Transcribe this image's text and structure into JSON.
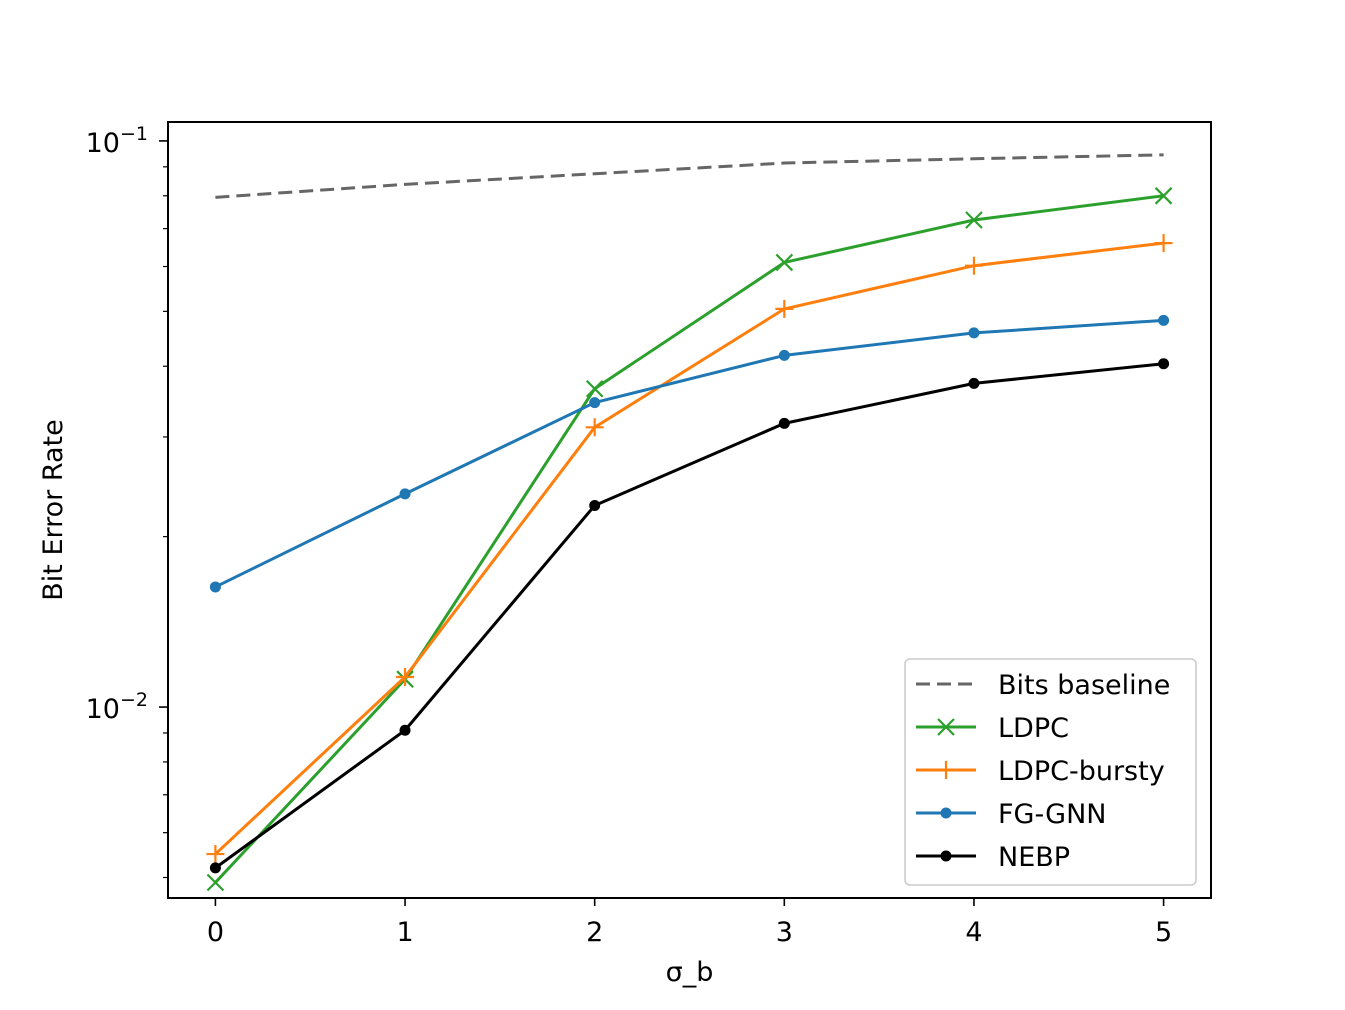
{
  "chart_data": {
    "type": "line",
    "title": "",
    "xlabel": "σ_b",
    "ylabel": "Bit Error Rate",
    "yscale": "log",
    "x": [
      0,
      1,
      2,
      3,
      4,
      5
    ],
    "xlim": [
      -0.25,
      5.25
    ],
    "ylim": [
      0.0046,
      0.108
    ],
    "xticks": [
      {
        "value": 0,
        "label": "0"
      },
      {
        "value": 1,
        "label": "1"
      },
      {
        "value": 2,
        "label": "2"
      },
      {
        "value": 3,
        "label": "3"
      },
      {
        "value": 4,
        "label": "4"
      },
      {
        "value": 5,
        "label": "5"
      }
    ],
    "yticks": [
      {
        "value": 0.1,
        "base": "10",
        "exp": "−1"
      },
      {
        "value": 0.01,
        "base": "10",
        "exp": "−2"
      }
    ],
    "grid": false,
    "legend_position": "bottom-right",
    "series": [
      {
        "name": "Bits baseline",
        "color": "#666666",
        "style": "dashed",
        "marker": "none",
        "values": [
          0.0795,
          0.0838,
          0.0875,
          0.0914,
          0.093,
          0.0945
        ]
      },
      {
        "name": "LDPC",
        "color": "#2ca02c",
        "style": "solid",
        "marker": "x",
        "values": [
          0.0049,
          0.0112,
          0.0365,
          0.061,
          0.0725,
          0.08
        ]
      },
      {
        "name": "LDPC-bursty",
        "color": "#ff7f0e",
        "style": "solid",
        "marker": "plus",
        "values": [
          0.0055,
          0.0113,
          0.0312,
          0.0505,
          0.0602,
          0.066
        ]
      },
      {
        "name": "FG-GNN",
        "color": "#1f77b4",
        "style": "solid",
        "marker": "dot",
        "values": [
          0.0163,
          0.0238,
          0.0345,
          0.0418,
          0.0458,
          0.0482
        ]
      },
      {
        "name": "NEBP",
        "color": "#000000",
        "style": "solid",
        "marker": "dot",
        "values": [
          0.0052,
          0.0091,
          0.0227,
          0.0317,
          0.0373,
          0.0404
        ]
      }
    ]
  }
}
